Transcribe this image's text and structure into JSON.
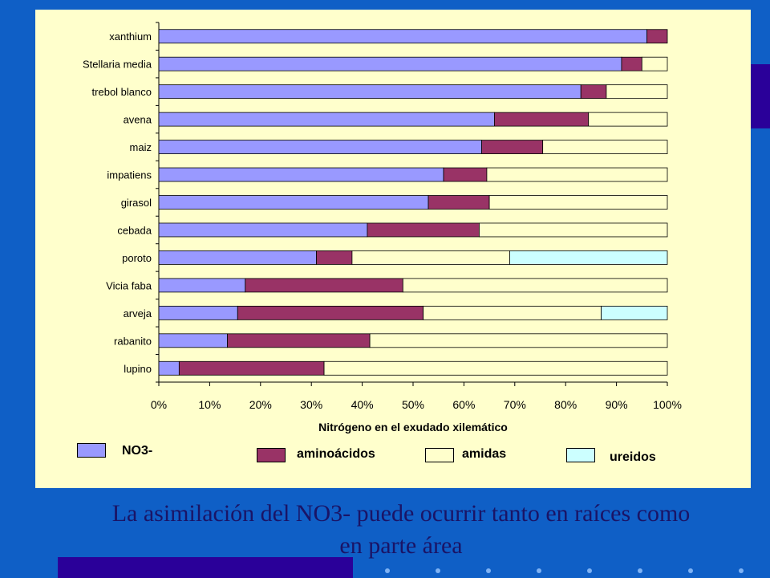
{
  "chart_data": {
    "type": "bar",
    "orientation": "horizontal",
    "stacked": "percent",
    "categories": [
      "xanthium",
      "Stellaria media",
      "trebol blanco",
      "avena",
      "maiz",
      "impatiens",
      "girasol",
      "cebada",
      "poroto",
      "Vicia faba",
      "arveja",
      "rabanito",
      "lupino"
    ],
    "series": [
      {
        "name": "NO3-",
        "color": "#9999FF",
        "values": [
          96,
          91,
          83,
          66,
          63.5,
          56,
          53,
          41,
          31,
          17,
          15.5,
          13.5,
          4
        ]
      },
      {
        "name": "aminoácidos",
        "color": "#993366",
        "values": [
          4,
          4,
          5,
          18.5,
          12,
          8.5,
          12,
          22,
          7,
          31,
          36.5,
          28,
          28.5
        ]
      },
      {
        "name": "amidas",
        "color": "#FFFFCC",
        "values": [
          0,
          5,
          12,
          15.5,
          24.5,
          35.5,
          35,
          37,
          31,
          52,
          35,
          58.5,
          67.5
        ]
      },
      {
        "name": "ureidos",
        "color": "#CCFFFF",
        "values": [
          0,
          0,
          0,
          0,
          0,
          0,
          0,
          0,
          31,
          0,
          13,
          0,
          0
        ]
      }
    ],
    "xticks": [
      "0%",
      "10%",
      "20%",
      "30%",
      "40%",
      "50%",
      "60%",
      "70%",
      "80%",
      "90%",
      "100%"
    ],
    "xlim": [
      0,
      100
    ],
    "xlabel": "Nitrógeno en el exudado xilemático",
    "ylabel": "",
    "grid": false,
    "legend_position": "bottom"
  },
  "legend": {
    "no3": {
      "label": "NO3-",
      "color": "#9999FF"
    },
    "aminoacidos": {
      "label": "aminoácidos",
      "color": "#993366"
    },
    "amidas": {
      "label": "amidas",
      "color": "#FFFFCC"
    },
    "ureidos": {
      "label": "ureidos",
      "color": "#CCFFFF"
    }
  },
  "caption": {
    "line1": "La asimilación del NO3- puede ocurrir tanto en raíces como",
    "line2": "en parte área"
  },
  "colors": {
    "background": "#0F5FC6",
    "panel": "#FFFFCC",
    "accent": "#2A0099",
    "caption_text": "#1A1466",
    "dots": "#7FB3F5"
  }
}
